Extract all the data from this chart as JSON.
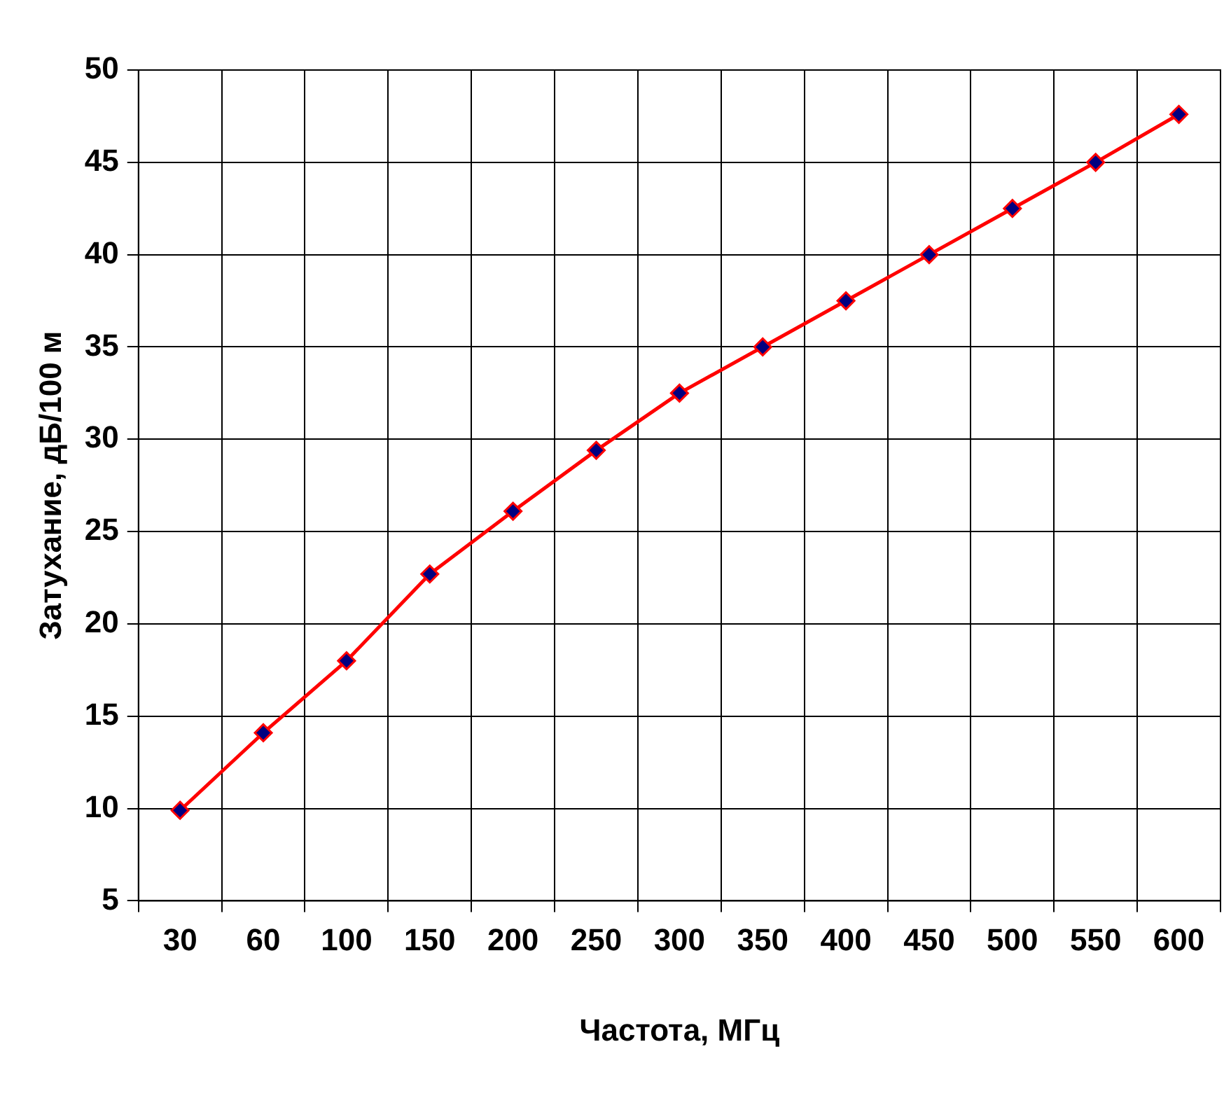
{
  "chart_data": {
    "type": "line",
    "xlabel": "Частота, МГц",
    "ylabel": "Затухание, дБ/100 м",
    "categories": [
      "30",
      "60",
      "100",
      "150",
      "200",
      "250",
      "300",
      "350",
      "400",
      "450",
      "500",
      "550",
      "600"
    ],
    "series": [
      {
        "color": "#ff0000",
        "values": [
          9.9,
          14.1,
          18,
          22.7,
          26.1,
          29.4,
          32.5,
          35,
          37.5,
          40,
          42.5,
          45,
          47.6
        ]
      }
    ],
    "ylim": [
      5,
      50
    ],
    "yticks": [
      5,
      10,
      15,
      20,
      25,
      30,
      35,
      40,
      45,
      50
    ],
    "grid": true,
    "legend": false,
    "marker": "diamond",
    "line_style": "solid"
  }
}
